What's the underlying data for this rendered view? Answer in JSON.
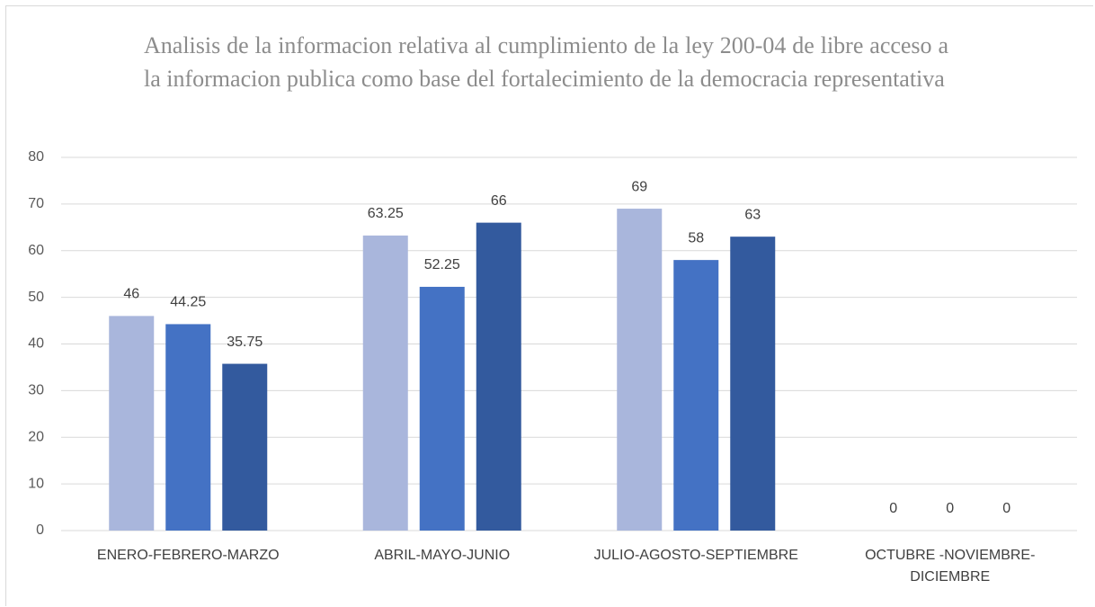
{
  "chart_data": {
    "type": "bar",
    "title": "Analisis de la informacion relativa al cumplimiento de la ley 200-04 de libre acceso a la informacion publica como base del fortalecimiento de la democracia representativa",
    "categories": [
      "ENERO-FEBRERO-MARZO",
      "ABRIL-MAYO-JUNIO",
      "JULIO-AGOSTO-SEPTIEMBRE",
      "OCTUBRE -NOVIEMBRE-DICIEMBRE"
    ],
    "series": [
      {
        "color": "#a9b6dc",
        "values": [
          46,
          63.25,
          69,
          0
        ]
      },
      {
        "color": "#4472c4",
        "values": [
          44.25,
          52.25,
          58,
          0
        ]
      },
      {
        "color": "#335a9e",
        "values": [
          35.75,
          66,
          63,
          0
        ]
      }
    ],
    "ylim": [
      0,
      80
    ],
    "yticks": [
      0,
      10,
      20,
      30,
      40,
      50,
      60,
      70,
      80
    ],
    "grid": true
  }
}
